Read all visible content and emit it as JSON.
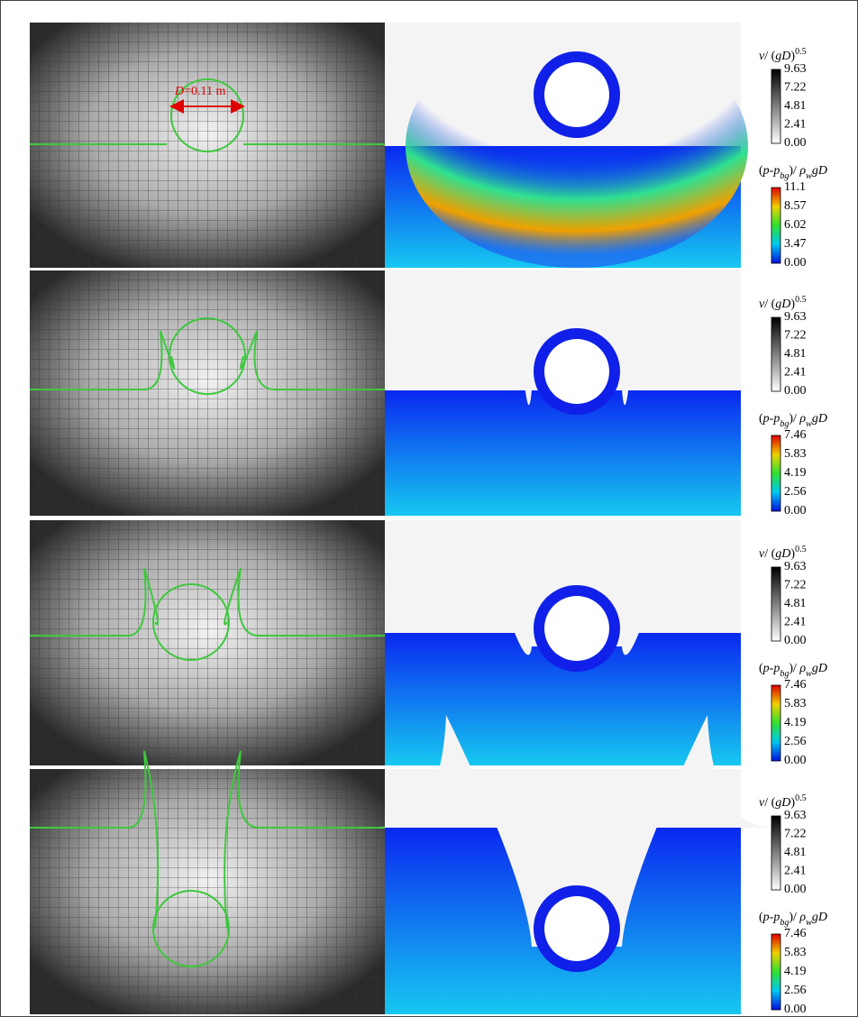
{
  "annotation": [
    {
      "italic": "D"
    },
    {
      "text": "=0.11 m"
    }
  ],
  "rows": [
    {
      "velocity_bar": {
        "title": [
          {
            "italic": "v"
          },
          {
            "text": "/ ("
          },
          {
            "italic": "gD"
          },
          {
            "text": ")"
          },
          {
            "sup": "0.5"
          }
        ],
        "ticks": [
          "9.63",
          "7.22",
          "4.81",
          "2.41",
          "0.00"
        ]
      },
      "pressure_bar": {
        "title": [
          {
            "text": "("
          },
          {
            "italic": "p"
          },
          {
            "text": "-"
          },
          {
            "italic": "p"
          },
          {
            "sub": "bg"
          },
          {
            "text": ")/ "
          },
          {
            "italic": "ρ"
          },
          {
            "sub": "w"
          },
          {
            "italic": "gD"
          }
        ],
        "ticks": [
          "11.1",
          "8.57",
          "6.02",
          "3.47",
          "0.00"
        ]
      }
    },
    {
      "velocity_bar": {
        "title": [
          {
            "italic": "v"
          },
          {
            "text": "/ ("
          },
          {
            "italic": "gD"
          },
          {
            "text": ")"
          },
          {
            "sup": "0.5"
          }
        ],
        "ticks": [
          "9.63",
          "7.22",
          "4.81",
          "2.41",
          "0.00"
        ]
      },
      "pressure_bar": {
        "title": [
          {
            "text": "("
          },
          {
            "italic": "p"
          },
          {
            "text": "-"
          },
          {
            "italic": "p"
          },
          {
            "sub": "bg"
          },
          {
            "text": ")/ "
          },
          {
            "italic": "ρ"
          },
          {
            "sub": "w"
          },
          {
            "italic": "gD"
          }
        ],
        "ticks": [
          "7.46",
          "5.83",
          "4.19",
          "2.56",
          "0.00"
        ]
      }
    },
    {
      "velocity_bar": {
        "title": [
          {
            "italic": "v"
          },
          {
            "text": "/ ("
          },
          {
            "italic": "gD"
          },
          {
            "text": ")"
          },
          {
            "sup": "0.5"
          }
        ],
        "ticks": [
          "9.63",
          "7.22",
          "4.81",
          "2.41",
          "0.00"
        ]
      },
      "pressure_bar": {
        "title": [
          {
            "text": "("
          },
          {
            "italic": "p"
          },
          {
            "text": "-"
          },
          {
            "italic": "p"
          },
          {
            "sub": "bg"
          },
          {
            "text": ")/ "
          },
          {
            "italic": "ρ"
          },
          {
            "sub": "w"
          },
          {
            "italic": "gD"
          }
        ],
        "ticks": [
          "7.46",
          "5.83",
          "4.19",
          "2.56",
          "0.00"
        ]
      }
    },
    {
      "velocity_bar": {
        "title": [
          {
            "italic": "v"
          },
          {
            "text": "/ ("
          },
          {
            "italic": "gD"
          },
          {
            "text": ")"
          },
          {
            "sup": "0.5"
          }
        ],
        "ticks": [
          "9.63",
          "7.22",
          "4.81",
          "2.41",
          "0.00"
        ]
      },
      "pressure_bar": {
        "title": [
          {
            "text": "("
          },
          {
            "italic": "p"
          },
          {
            "text": "-"
          },
          {
            "italic": "p"
          },
          {
            "sub": "bg"
          },
          {
            "text": ")/ "
          },
          {
            "italic": "ρ"
          },
          {
            "sub": "w"
          },
          {
            "italic": "gD"
          }
        ],
        "ticks": [
          "7.46",
          "5.83",
          "4.19",
          "2.56",
          "0.00"
        ]
      }
    }
  ]
}
